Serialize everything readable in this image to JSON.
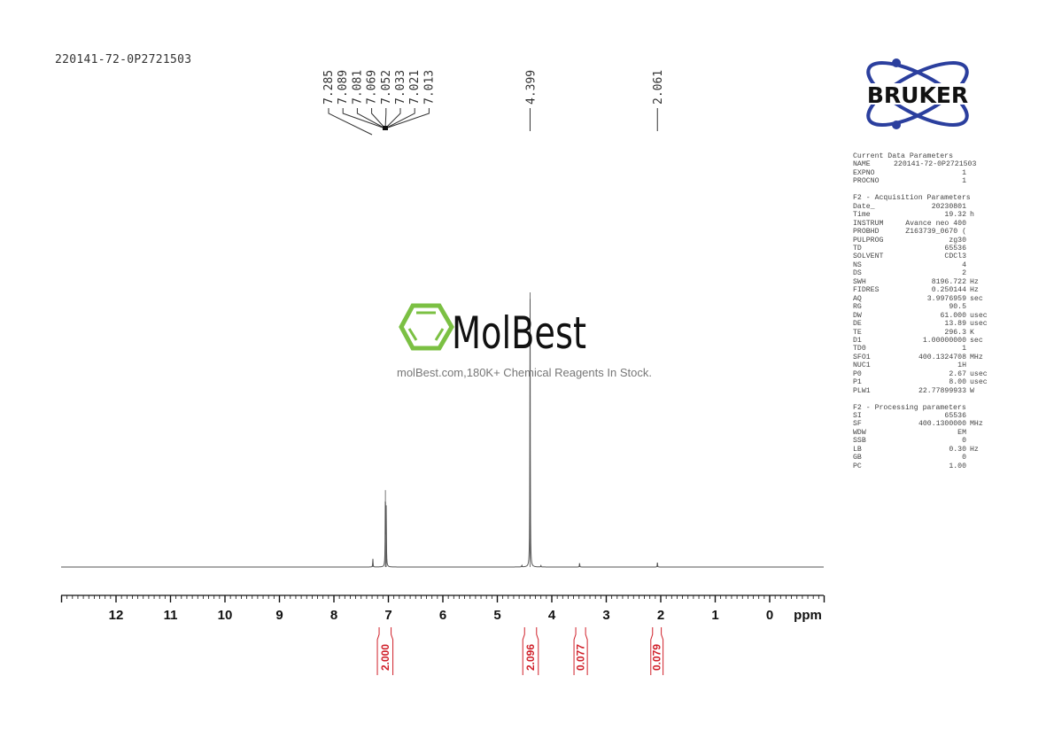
{
  "sample_id": "220141-72-0P2721503",
  "logos": {
    "bruker": {
      "text": "BRUKER",
      "colors": {
        "orbit": "#2b3f9e",
        "text": "#111111"
      }
    },
    "molbest": {
      "text": "MolBest",
      "tagline": "molBest.com,180K+ Chemical Reagents In Stock.",
      "colors": {
        "hexagon": "#7bc043",
        "text": "#111111"
      }
    }
  },
  "parameters": {
    "sections": [
      {
        "title": "Current Data Parameters",
        "rows": [
          {
            "label": "NAME",
            "value": "220141-72-0P2721503",
            "unit": ""
          },
          {
            "label": "EXPNO",
            "value": "1",
            "unit": ""
          },
          {
            "label": "PROCNO",
            "value": "1",
            "unit": ""
          }
        ]
      },
      {
        "title": "F2 - Acquisition Parameters",
        "rows": [
          {
            "label": "Date_",
            "value": "20230801",
            "unit": ""
          },
          {
            "label": "Time",
            "value": "19.32",
            "unit": "h"
          },
          {
            "label": "INSTRUM",
            "value": "Avance neo 400",
            "unit": ""
          },
          {
            "label": "PROBHD",
            "value": "Z163739_0670 (",
            "unit": ""
          },
          {
            "label": "PULPROG",
            "value": "zg30",
            "unit": ""
          },
          {
            "label": "TD",
            "value": "65536",
            "unit": ""
          },
          {
            "label": "SOLVENT",
            "value": "CDCl3",
            "unit": ""
          },
          {
            "label": "NS",
            "value": "4",
            "unit": ""
          },
          {
            "label": "DS",
            "value": "2",
            "unit": ""
          },
          {
            "label": "SWH",
            "value": "8196.722",
            "unit": "Hz"
          },
          {
            "label": "FIDRES",
            "value": "0.250144",
            "unit": "Hz"
          },
          {
            "label": "AQ",
            "value": "3.9976959",
            "unit": "sec"
          },
          {
            "label": "RG",
            "value": "90.5",
            "unit": ""
          },
          {
            "label": "DW",
            "value": "61.000",
            "unit": "usec"
          },
          {
            "label": "DE",
            "value": "13.89",
            "unit": "usec"
          },
          {
            "label": "TE",
            "value": "296.3",
            "unit": "K"
          },
          {
            "label": "D1",
            "value": "1.00000000",
            "unit": "sec"
          },
          {
            "label": "TD0",
            "value": "1",
            "unit": ""
          },
          {
            "label": "SFO1",
            "value": "400.1324708",
            "unit": "MHz"
          },
          {
            "label": "NUC1",
            "value": "1H",
            "unit": ""
          },
          {
            "label": "P0",
            "value": "2.67",
            "unit": "usec"
          },
          {
            "label": "P1",
            "value": "8.00",
            "unit": "usec"
          },
          {
            "label": "PLW1",
            "value": "22.77899933",
            "unit": "W"
          }
        ]
      },
      {
        "title": "F2 - Processing parameters",
        "rows": [
          {
            "label": "SI",
            "value": "65536",
            "unit": ""
          },
          {
            "label": "SF",
            "value": "400.1300000",
            "unit": "MHz"
          },
          {
            "label": "WDW",
            "value": "EM",
            "unit": ""
          },
          {
            "label": "SSB",
            "value": "0",
            "unit": ""
          },
          {
            "label": "LB",
            "value": "0.30",
            "unit": "Hz"
          },
          {
            "label": "GB",
            "value": "0",
            "unit": ""
          },
          {
            "label": "PC",
            "value": "1.00",
            "unit": ""
          }
        ]
      }
    ]
  },
  "chart_data": {
    "type": "line",
    "title": "",
    "xlabel": "ppm",
    "ylabel": "",
    "xlim": [
      13,
      -1
    ],
    "x_reversed": true,
    "xticks": [
      "12",
      "11",
      "10",
      "9",
      "8",
      "7",
      "6",
      "5",
      "4",
      "3",
      "2",
      "1",
      "0"
    ],
    "grid": false,
    "peaks": [
      {
        "ppm": 7.285,
        "intensity": 0.03
      },
      {
        "ppm": 7.055,
        "intensity": 0.28
      },
      {
        "ppm": 7.04,
        "intensity": 0.21
      },
      {
        "ppm": 4.55,
        "intensity": 0.006
      },
      {
        "ppm": 4.399,
        "intensity": 1.0
      },
      {
        "ppm": 4.2,
        "intensity": 0.005
      },
      {
        "ppm": 3.49,
        "intensity": 0.014
      },
      {
        "ppm": 2.061,
        "intensity": 0.016
      }
    ],
    "peak_labels": {
      "group": [
        "7.285",
        "7.089",
        "7.081",
        "7.069",
        "7.052",
        "7.033",
        "7.021",
        "7.013"
      ],
      "singles": [
        "4.399",
        "2.061"
      ]
    },
    "integrals": [
      {
        "from": 7.17,
        "to": 6.95,
        "value": "2.000"
      },
      {
        "from": 4.5,
        "to": 4.28,
        "value": "2.096"
      },
      {
        "from": 3.56,
        "to": 3.38,
        "value": "0.077"
      },
      {
        "from": 2.15,
        "to": 1.99,
        "value": "0.079"
      }
    ],
    "colors": {
      "spectrum": "#555555",
      "integral": "#d0202a",
      "axis": "#111111"
    }
  }
}
